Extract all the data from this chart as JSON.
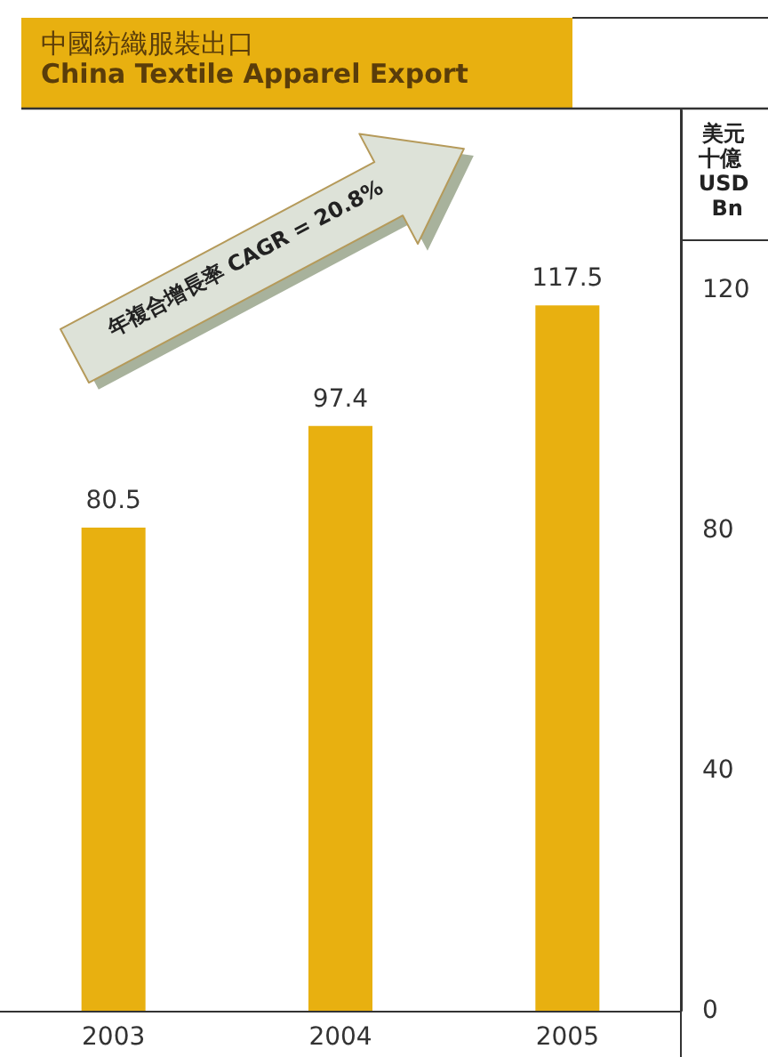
{
  "chart_data": {
    "type": "bar",
    "title": "中國紡織服裝出口",
    "subtitle": "China Textile Apparel Export",
    "ylabel": "美元十億 USD Bn",
    "annotations": [
      "年複合增長率 CAGR = 20.8%"
    ],
    "categories": [
      "2003",
      "2004",
      "2005"
    ],
    "values": [
      80.5,
      97.4,
      117.5
    ],
    "color": "#e8b010",
    "ylim": [
      0,
      150
    ],
    "yticks": [
      0,
      40,
      80,
      120
    ],
    "data_labels": true,
    "grid": false
  }
}
